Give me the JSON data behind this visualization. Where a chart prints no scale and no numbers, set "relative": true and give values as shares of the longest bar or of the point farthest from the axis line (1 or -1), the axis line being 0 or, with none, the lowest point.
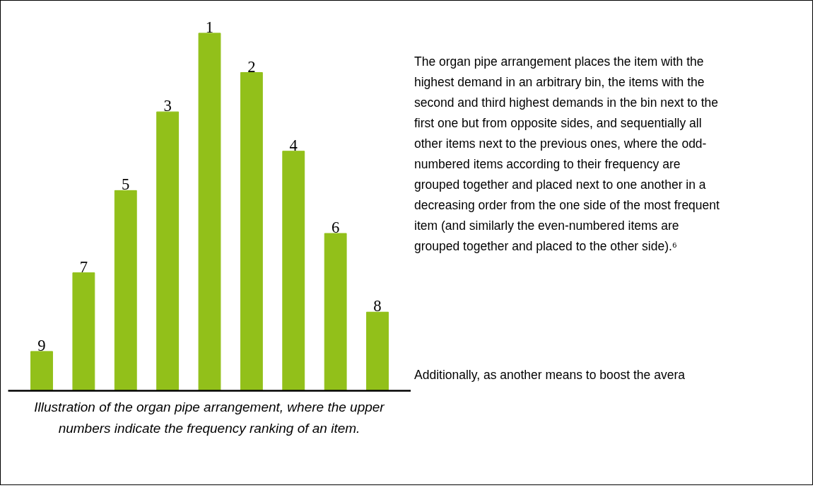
{
  "chart_data": {
    "type": "bar",
    "categories": [
      null,
      null,
      null,
      null,
      null,
      null,
      null,
      null,
      null
    ],
    "values": [
      0.11,
      0.33,
      0.56,
      0.78,
      1,
      0.89,
      0.67,
      0.44,
      0.22
    ],
    "color": "#92c01a",
    "relative": true,
    "annotations": [
      {
        "text": "9",
        "y": 0.11
      },
      {
        "text": "7",
        "y": 0.33
      },
      {
        "text": "5",
        "y": 0.56
      },
      {
        "text": "3",
        "y": 0.78
      },
      {
        "text": "1",
        "y": 1
      },
      {
        "text": "2",
        "y": 0.89
      },
      {
        "text": "4",
        "y": 0.67
      },
      {
        "text": "6",
        "y": 0.44
      },
      {
        "text": "8",
        "y": 0.22
      },
      "Illustration of the organ pipe arrangement, where the upper numbers indicate the frequency ranking of an item.",
      "The organ pipe arrangement places the item with the highest demand in an arbitrary bin, the items with the second and third highest demands in the bin next to the first one but from opposite sides, and sequentially all other items next to the previous ones, where the odd-numbered items according to their frequency are grouped together and placed next to one another in a decreasing order from the one side of the most frequent item (and similarly the even-numbered items are grouped together and placed to the other side).⁶",
      "Additionally, as another means to boost the avera"
    ]
  }
}
